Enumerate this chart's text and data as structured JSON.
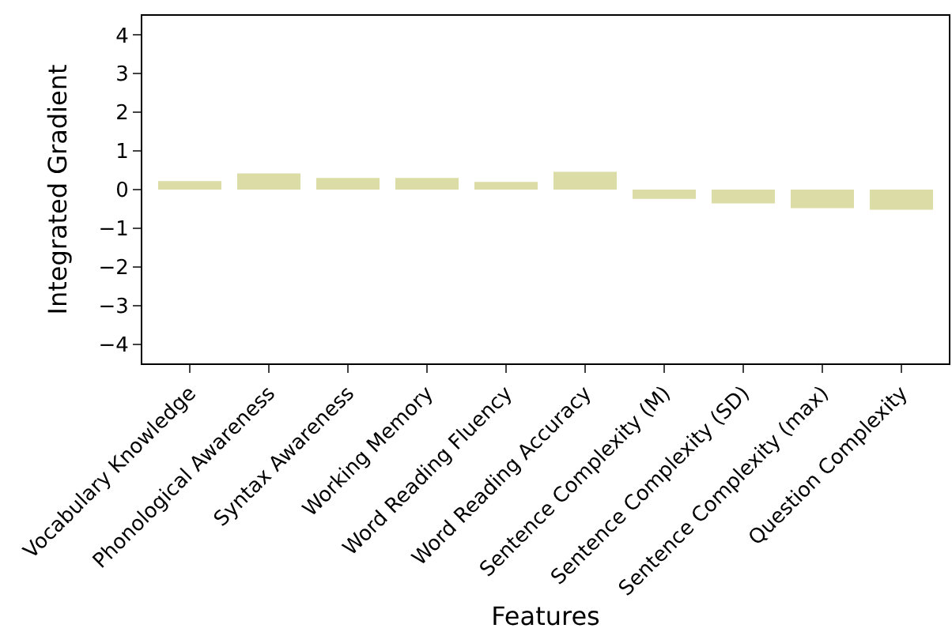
{
  "chart_data": {
    "type": "bar",
    "xlabel": "Features",
    "ylabel": "Integrated Gradient",
    "categories": [
      "Vocabulary Knowledge",
      "Phonological Awareness",
      "Syntax Awareness",
      "Working Memory",
      "Word Reading Fluency",
      "Word Reading Accuracy",
      "Sentence Complexity (M)",
      "Sentence Complexity (SD)",
      "Sentence Complexity (max)",
      "Question Complexity"
    ],
    "values": [
      0.22,
      0.42,
      0.3,
      0.3,
      0.2,
      0.46,
      -0.24,
      -0.36,
      -0.48,
      -0.52
    ],
    "color": "#dcdca6",
    "ylim": [
      -4.5,
      4.5
    ],
    "yticks": [
      -4,
      -3,
      -2,
      -1,
      0,
      1,
      2,
      3,
      4
    ]
  }
}
